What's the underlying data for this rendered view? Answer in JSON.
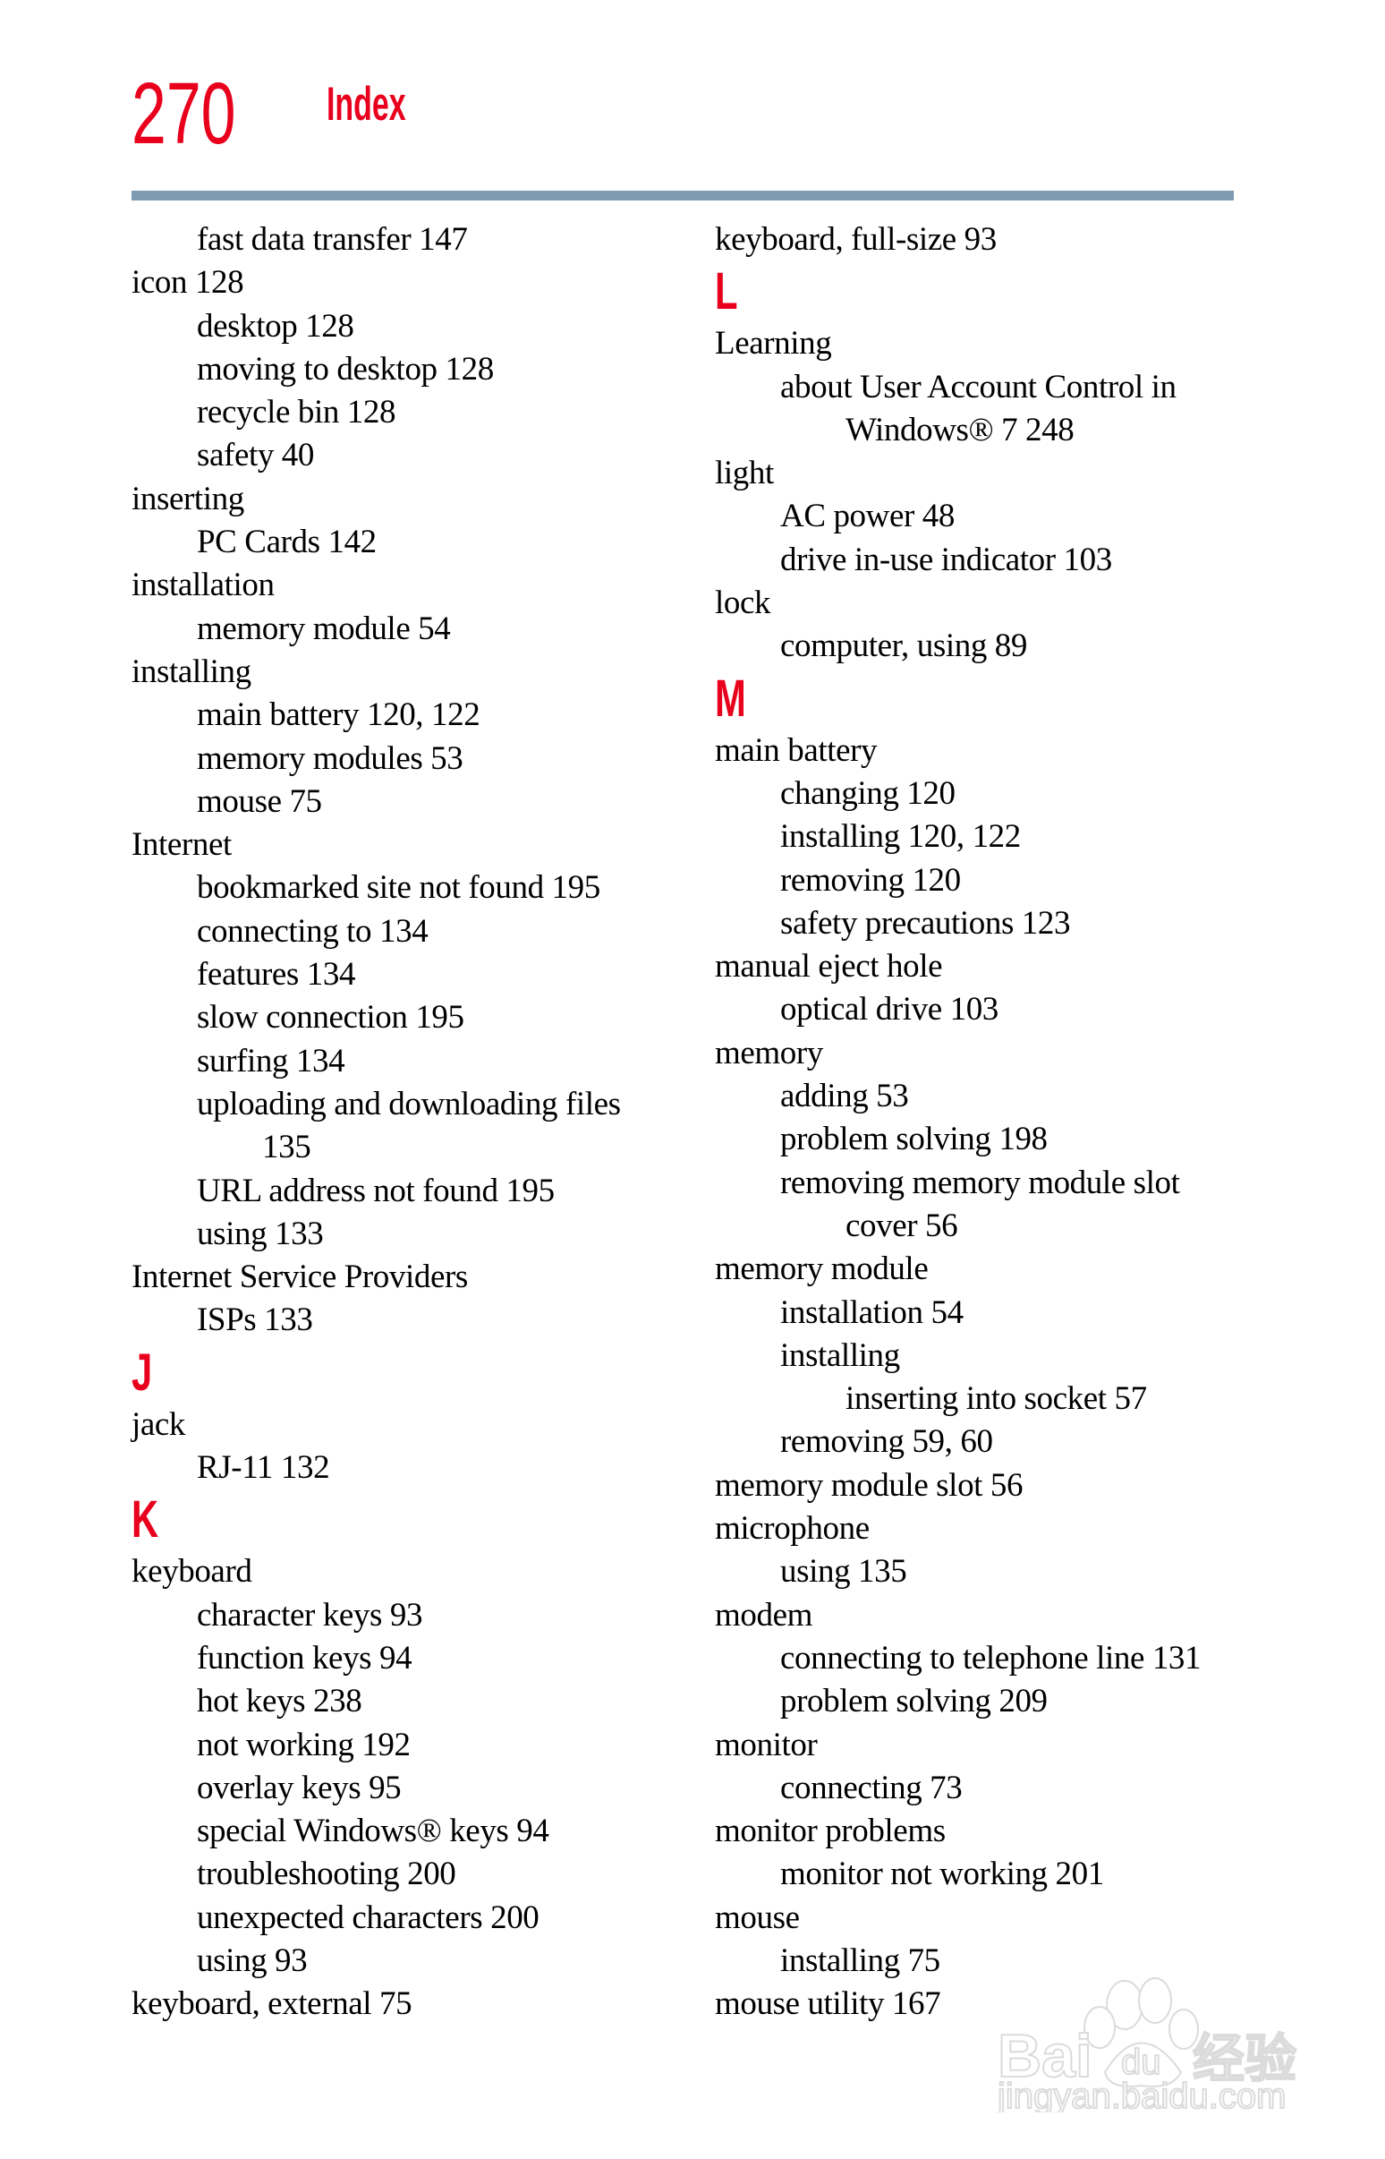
{
  "header": {
    "page_number": "270",
    "title": "Index",
    "accent_color": "#e8001c",
    "rule_color": "#7f9bb4"
  },
  "left_column": [
    {
      "level": 1,
      "text": "fast data transfer 147"
    },
    {
      "level": 0,
      "text": "icon 128"
    },
    {
      "level": 1,
      "text": "desktop 128"
    },
    {
      "level": 1,
      "text": "moving to desktop 128"
    },
    {
      "level": 1,
      "text": "recycle bin 128"
    },
    {
      "level": 1,
      "text": "safety 40"
    },
    {
      "level": 0,
      "text": "inserting"
    },
    {
      "level": 1,
      "text": "PC Cards 142"
    },
    {
      "level": 0,
      "text": "installation"
    },
    {
      "level": 1,
      "text": "memory module 54"
    },
    {
      "level": 0,
      "text": "installing"
    },
    {
      "level": 1,
      "text": "main battery 120, 122"
    },
    {
      "level": 1,
      "text": "memory modules 53"
    },
    {
      "level": 1,
      "text": "mouse 75"
    },
    {
      "level": 0,
      "text": "Internet"
    },
    {
      "level": 1,
      "text": "bookmarked site not found 195"
    },
    {
      "level": 1,
      "text": "connecting to 134"
    },
    {
      "level": 1,
      "text": "features 134"
    },
    {
      "level": 1,
      "text": "slow connection 195"
    },
    {
      "level": 1,
      "text": "surfing 134"
    },
    {
      "level": 1,
      "text": "uploading and downloading files"
    },
    {
      "level": 2,
      "text": "135"
    },
    {
      "level": 1,
      "text": "URL address not found 195"
    },
    {
      "level": 1,
      "text": "using 133"
    },
    {
      "level": 0,
      "text": "Internet Service Providers"
    },
    {
      "level": 1,
      "text": "ISPs 133"
    },
    {
      "level": "heading",
      "text": "J"
    },
    {
      "level": 0,
      "text": "jack"
    },
    {
      "level": 1,
      "text": "RJ-11 132"
    },
    {
      "level": "heading",
      "text": "K"
    },
    {
      "level": 0,
      "text": "keyboard"
    },
    {
      "level": 1,
      "text": "character keys 93"
    },
    {
      "level": 1,
      "text": "function keys 94"
    },
    {
      "level": 1,
      "text": "hot keys 238"
    },
    {
      "level": 1,
      "text": "not working 192"
    },
    {
      "level": 1,
      "text": "overlay keys 95"
    },
    {
      "level": 1,
      "text": "special Windows® keys 94"
    },
    {
      "level": 1,
      "text": "troubleshooting 200"
    },
    {
      "level": 1,
      "text": "unexpected characters 200"
    },
    {
      "level": 1,
      "text": "using 93"
    },
    {
      "level": 0,
      "text": "keyboard, external 75"
    }
  ],
  "right_column": [
    {
      "level": 0,
      "text": "keyboard, full-size 93"
    },
    {
      "level": "heading",
      "text": "L"
    },
    {
      "level": 0,
      "text": "Learning"
    },
    {
      "level": 1,
      "text": "about User Account Control in"
    },
    {
      "level": 2,
      "text": "Windows® 7 248"
    },
    {
      "level": 0,
      "text": "light"
    },
    {
      "level": 1,
      "text": "AC power 48"
    },
    {
      "level": 1,
      "text": "drive in-use indicator 103"
    },
    {
      "level": 0,
      "text": "lock"
    },
    {
      "level": 1,
      "text": "computer, using 89"
    },
    {
      "level": "heading",
      "text": "M"
    },
    {
      "level": 0,
      "text": "main battery"
    },
    {
      "level": 1,
      "text": "changing 120"
    },
    {
      "level": 1,
      "text": "installing 120, 122"
    },
    {
      "level": 1,
      "text": "removing 120"
    },
    {
      "level": 1,
      "text": "safety precautions 123"
    },
    {
      "level": 0,
      "text": "manual eject hole"
    },
    {
      "level": 1,
      "text": "optical drive 103"
    },
    {
      "level": 0,
      "text": "memory"
    },
    {
      "level": 1,
      "text": "adding 53"
    },
    {
      "level": 1,
      "text": "problem solving 198"
    },
    {
      "level": 1,
      "text": "removing memory module slot"
    },
    {
      "level": 2,
      "text": "cover 56"
    },
    {
      "level": 0,
      "text": "memory module"
    },
    {
      "level": 1,
      "text": "installation 54"
    },
    {
      "level": 1,
      "text": "installing"
    },
    {
      "level": 2,
      "text": "inserting into socket 57"
    },
    {
      "level": 1,
      "text": "removing 59, 60"
    },
    {
      "level": 0,
      "text": "memory module slot 56"
    },
    {
      "level": 0,
      "text": "microphone"
    },
    {
      "level": 1,
      "text": "using 135"
    },
    {
      "level": 0,
      "text": "modem"
    },
    {
      "level": 1,
      "text": "connecting to telephone line 131"
    },
    {
      "level": 1,
      "text": "problem solving 209"
    },
    {
      "level": 0,
      "text": "monitor"
    },
    {
      "level": 1,
      "text": "connecting 73"
    },
    {
      "level": 0,
      "text": "monitor problems"
    },
    {
      "level": 1,
      "text": "monitor not working 201"
    },
    {
      "level": 0,
      "text": "mouse"
    },
    {
      "level": 1,
      "text": "installing 75"
    },
    {
      "level": 0,
      "text": "mouse utility 167"
    }
  ],
  "watermark": {
    "logo_text": "Bai du 经验",
    "url_text": "jingyan.baidu.com"
  }
}
